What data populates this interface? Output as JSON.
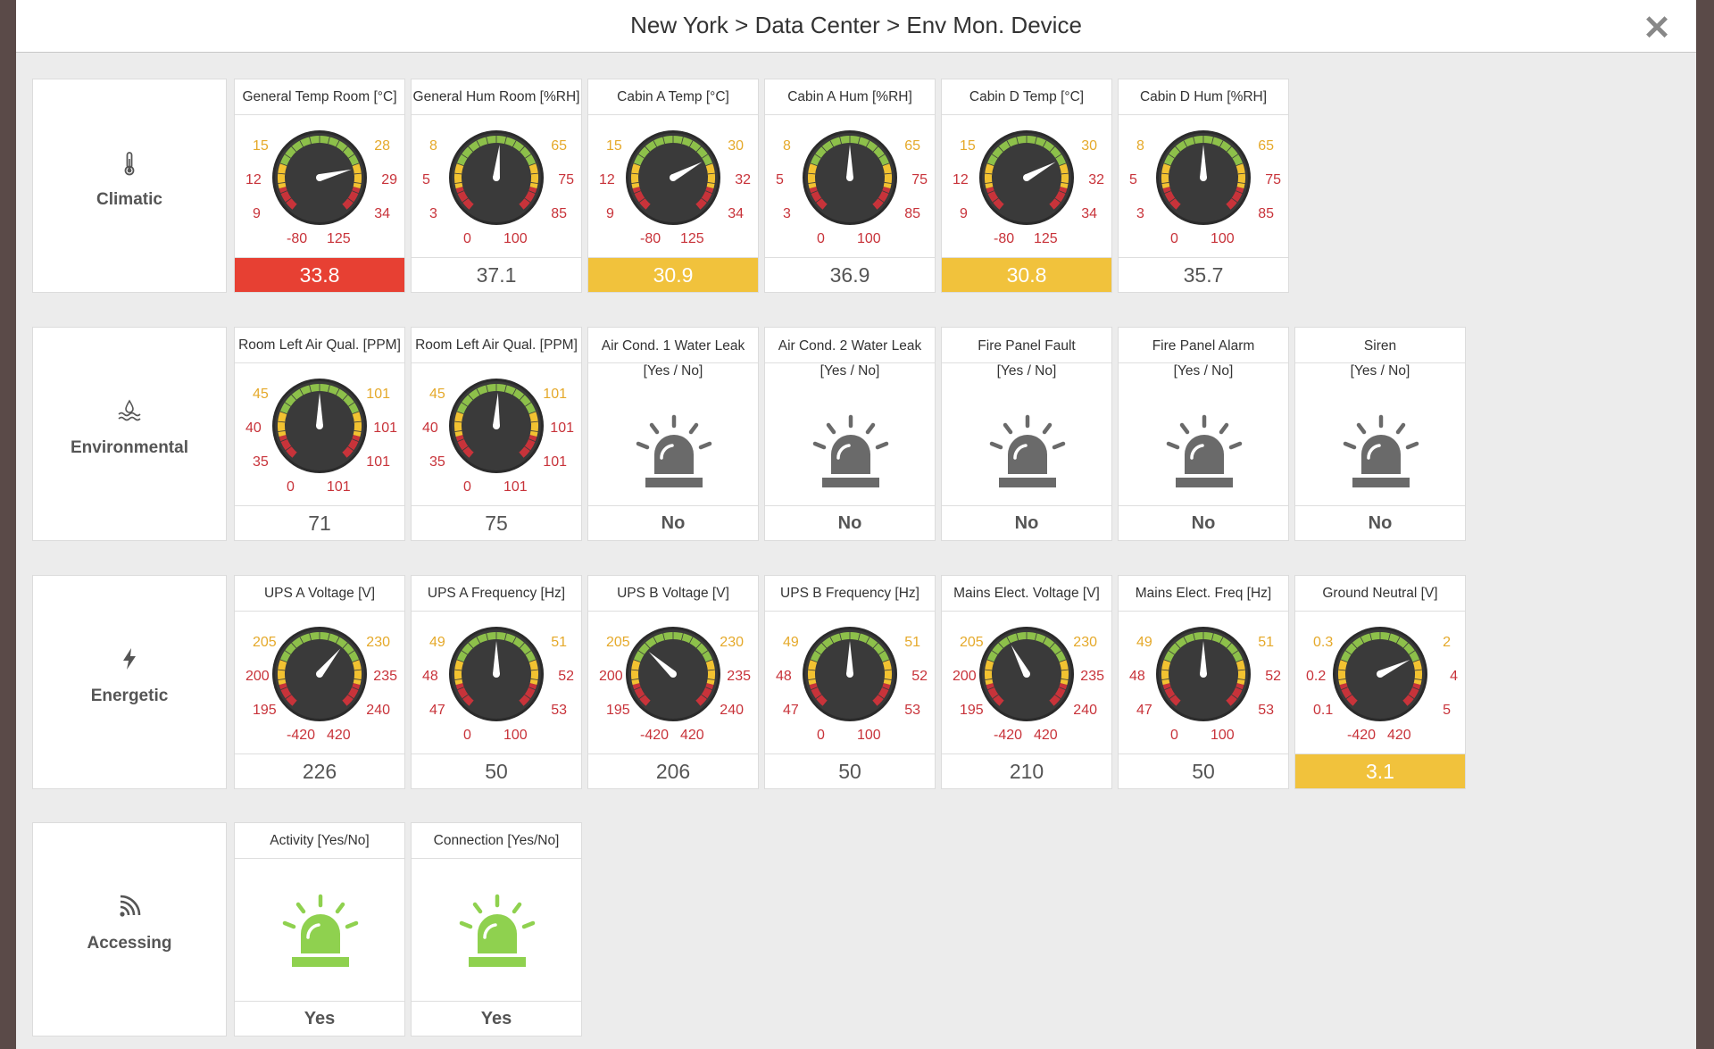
{
  "header": {
    "title": "New York > Data Center > Env Mon. Device",
    "close_icon": "close-icon"
  },
  "colors": {
    "alarm_red": "#e74033",
    "warning_yellow": "#f1c23c",
    "siren_gray": "#6a6a6a",
    "siren_green": "#8fd14f",
    "gauge_green": "#8dc04a",
    "gauge_yellow": "#f2c231",
    "gauge_red": "#c8333a"
  },
  "sections": [
    {
      "name": "climatic",
      "label": "Climatic",
      "icon": "thermometer-icon",
      "tiles": [
        {
          "kind": "gauge",
          "title": "General Temp Room [°C]",
          "labels": {
            "tl": "15",
            "ml": "12",
            "bl": "9",
            "tr": "28",
            "mr": "29",
            "br": "34",
            "min": "-80",
            "max": "125"
          },
          "needle": 0.77,
          "value": "33.8",
          "status": "alarm"
        },
        {
          "kind": "gauge",
          "title": "General Hum Room [%RH]",
          "labels": {
            "tl": "8",
            "ml": "5",
            "bl": "3",
            "tr": "65",
            "mr": "75",
            "br": "85",
            "min": "0",
            "max": "100"
          },
          "needle": 0.52,
          "value": "37.1",
          "status": "normal"
        },
        {
          "kind": "gauge",
          "title": "Cabin A Temp  [°C]",
          "labels": {
            "tl": "15",
            "ml": "12",
            "bl": "9",
            "tr": "30",
            "mr": "32",
            "br": "34",
            "min": "-80",
            "max": "125"
          },
          "needle": 0.72,
          "value": "30.9",
          "status": "warning"
        },
        {
          "kind": "gauge",
          "title": "Cabin A Hum  [%RH]",
          "labels": {
            "tl": "8",
            "ml": "5",
            "bl": "3",
            "tr": "65",
            "mr": "75",
            "br": "85",
            "min": "0",
            "max": "100"
          },
          "needle": 0.5,
          "value": "36.9",
          "status": "normal"
        },
        {
          "kind": "gauge",
          "title": "Cabin D Temp  [°C]",
          "labels": {
            "tl": "15",
            "ml": "12",
            "bl": "9",
            "tr": "30",
            "mr": "32",
            "br": "34",
            "min": "-80",
            "max": "125"
          },
          "needle": 0.72,
          "value": "30.8",
          "status": "warning"
        },
        {
          "kind": "gauge",
          "title": "Cabin D Hum  [%RH]",
          "labels": {
            "tl": "8",
            "ml": "5",
            "bl": "3",
            "tr": "65",
            "mr": "75",
            "br": "85",
            "min": "0",
            "max": "100"
          },
          "needle": 0.5,
          "value": "35.7",
          "status": "normal"
        }
      ]
    },
    {
      "name": "environmental",
      "label": "Environmental",
      "icon": "water-waves-icon",
      "tiles": [
        {
          "kind": "gauge",
          "title": "Room Left Air Qual. [PPM]",
          "labels": {
            "tl": "45",
            "ml": "40",
            "bl": "35",
            "tr": "101",
            "mr": "101",
            "br": "101",
            "min": "0",
            "max": "101"
          },
          "needle": 0.5,
          "value": "71",
          "status": "normal"
        },
        {
          "kind": "gauge",
          "title": "Room Left Air Qual. [PPM]",
          "labels": {
            "tl": "45",
            "ml": "40",
            "bl": "35",
            "tr": "101",
            "mr": "101",
            "br": "101",
            "min": "0",
            "max": "101"
          },
          "needle": 0.51,
          "value": "75",
          "status": "normal"
        },
        {
          "kind": "siren",
          "title": "Air Cond. 1 Water Leak",
          "subtitle": "[Yes / No]",
          "value": "No",
          "state": "off"
        },
        {
          "kind": "siren",
          "title": "Air Cond. 2 Water Leak",
          "subtitle": "[Yes / No]",
          "value": "No",
          "state": "off"
        },
        {
          "kind": "siren",
          "title": "Fire Panel Fault",
          "subtitle": "[Yes / No]",
          "value": "No",
          "state": "off"
        },
        {
          "kind": "siren",
          "title": "Fire Panel Alarm",
          "subtitle": "[Yes / No]",
          "value": "No",
          "state": "off"
        },
        {
          "kind": "siren",
          "title": "Siren",
          "subtitle": "[Yes / No]",
          "value": "No",
          "state": "off"
        }
      ]
    },
    {
      "name": "energetic",
      "label": "Energetic",
      "icon": "lightning-bolt-icon",
      "tiles": [
        {
          "kind": "gauge",
          "title": "UPS A Voltage [V]",
          "labels": {
            "tl": "205",
            "ml": "200",
            "bl": "195",
            "tr": "230",
            "mr": "235",
            "br": "240",
            "min": "-420",
            "max": "420"
          },
          "needle": 0.64,
          "value": "226",
          "status": "normal"
        },
        {
          "kind": "gauge",
          "title": "UPS A Frequency [Hz]",
          "labels": {
            "tl": "49",
            "ml": "48",
            "bl": "47",
            "tr": "51",
            "mr": "52",
            "br": "53",
            "min": "0",
            "max": "100"
          },
          "needle": 0.5,
          "value": "50",
          "status": "normal"
        },
        {
          "kind": "gauge",
          "title": "UPS B Voltage [V]",
          "labels": {
            "tl": "205",
            "ml": "200",
            "bl": "195",
            "tr": "230",
            "mr": "235",
            "br": "240",
            "min": "-420",
            "max": "420"
          },
          "needle": 0.33,
          "value": "206",
          "status": "normal"
        },
        {
          "kind": "gauge",
          "title": "UPS B Frequency [Hz]",
          "labels": {
            "tl": "49",
            "ml": "48",
            "bl": "47",
            "tr": "51",
            "mr": "52",
            "br": "53",
            "min": "0",
            "max": "100"
          },
          "needle": 0.5,
          "value": "50",
          "status": "normal"
        },
        {
          "kind": "gauge",
          "title": "Mains Elect. Voltage [V]",
          "labels": {
            "tl": "205",
            "ml": "200",
            "bl": "195",
            "tr": "230",
            "mr": "235",
            "br": "240",
            "min": "-420",
            "max": "420"
          },
          "needle": 0.4,
          "value": "210",
          "status": "normal"
        },
        {
          "kind": "gauge",
          "title": "Mains Elect. Freq [Hz]",
          "labels": {
            "tl": "49",
            "ml": "48",
            "bl": "47",
            "tr": "51",
            "mr": "52",
            "br": "53",
            "min": "0",
            "max": "100"
          },
          "needle": 0.5,
          "value": "50",
          "status": "normal"
        },
        {
          "kind": "gauge",
          "title": "Ground Neutral [V]",
          "labels": {
            "tl": "0.3",
            "ml": "0.2",
            "bl": "0.1",
            "tr": "2",
            "mr": "4",
            "br": "5",
            "min": "-420",
            "max": "420"
          },
          "needle": 0.73,
          "value": "3.1",
          "status": "warning"
        }
      ]
    },
    {
      "name": "accessing",
      "label": "Accessing",
      "icon": "wifi-signal-icon",
      "tiles": [
        {
          "kind": "siren",
          "title": "Activity [Yes/No]",
          "subtitle": "",
          "value": "Yes",
          "state": "on"
        },
        {
          "kind": "siren",
          "title": "Connection [Yes/No]",
          "subtitle": "",
          "value": "Yes",
          "state": "on"
        }
      ]
    }
  ]
}
